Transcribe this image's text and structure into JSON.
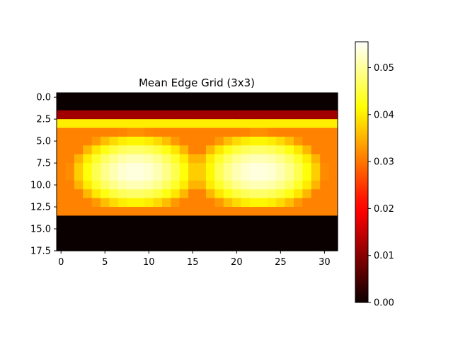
{
  "chart_data": {
    "type": "heatmap",
    "title": "Mean Edge Grid (3x3)",
    "xlabel": "",
    "ylabel": "",
    "x_ticks": [
      "0",
      "5",
      "10",
      "15",
      "20",
      "25",
      "30"
    ],
    "y_ticks": [
      "0.0",
      "2.5",
      "5.0",
      "7.5",
      "10.0",
      "12.5",
      "15.0",
      "17.5"
    ],
    "xlim": [
      -0.5,
      31.5
    ],
    "ylim": [
      17.5,
      -0.5
    ],
    "colormap": "hot",
    "colorbar": {
      "range": [
        0,
        0.0555
      ],
      "ticks": [
        "0.00",
        "0.01",
        "0.02",
        "0.03",
        "0.04",
        "0.05"
      ]
    },
    "grid_shape": [
      18,
      32
    ],
    "row_values": [
      {
        "rows": [
          0,
          1
        ],
        "description": "zero"
      },
      {
        "rows": [
          2
        ],
        "value": 0.012
      },
      {
        "rows": [
          3
        ],
        "value": 0.04
      },
      {
        "rows": [
          4,
          5,
          6,
          7,
          8,
          9,
          10,
          11,
          12
        ],
        "value": "two smooth bright blobs centered near x=8 and x=22, peak ≈ 0.054, edges ≈ 0.031"
      },
      {
        "rows": [
          13
        ],
        "value": 0.031
      },
      {
        "rows": [
          14,
          15,
          16,
          17
        ],
        "description": "zero"
      }
    ]
  },
  "grid_spec": {
    "zero_rows": [
      0,
      1,
      14,
      15,
      16,
      17
    ],
    "band_rows": {
      "2": 0.012,
      "3": 0.04,
      "13": 0.031
    },
    "blob_rows": [
      4,
      12
    ],
    "blob_centers_x": [
      8.5,
      22.5
    ],
    "blob_center_y": 8.5,
    "peak": 0.054,
    "edge": 0.031,
    "vmax": 0.0555
  }
}
